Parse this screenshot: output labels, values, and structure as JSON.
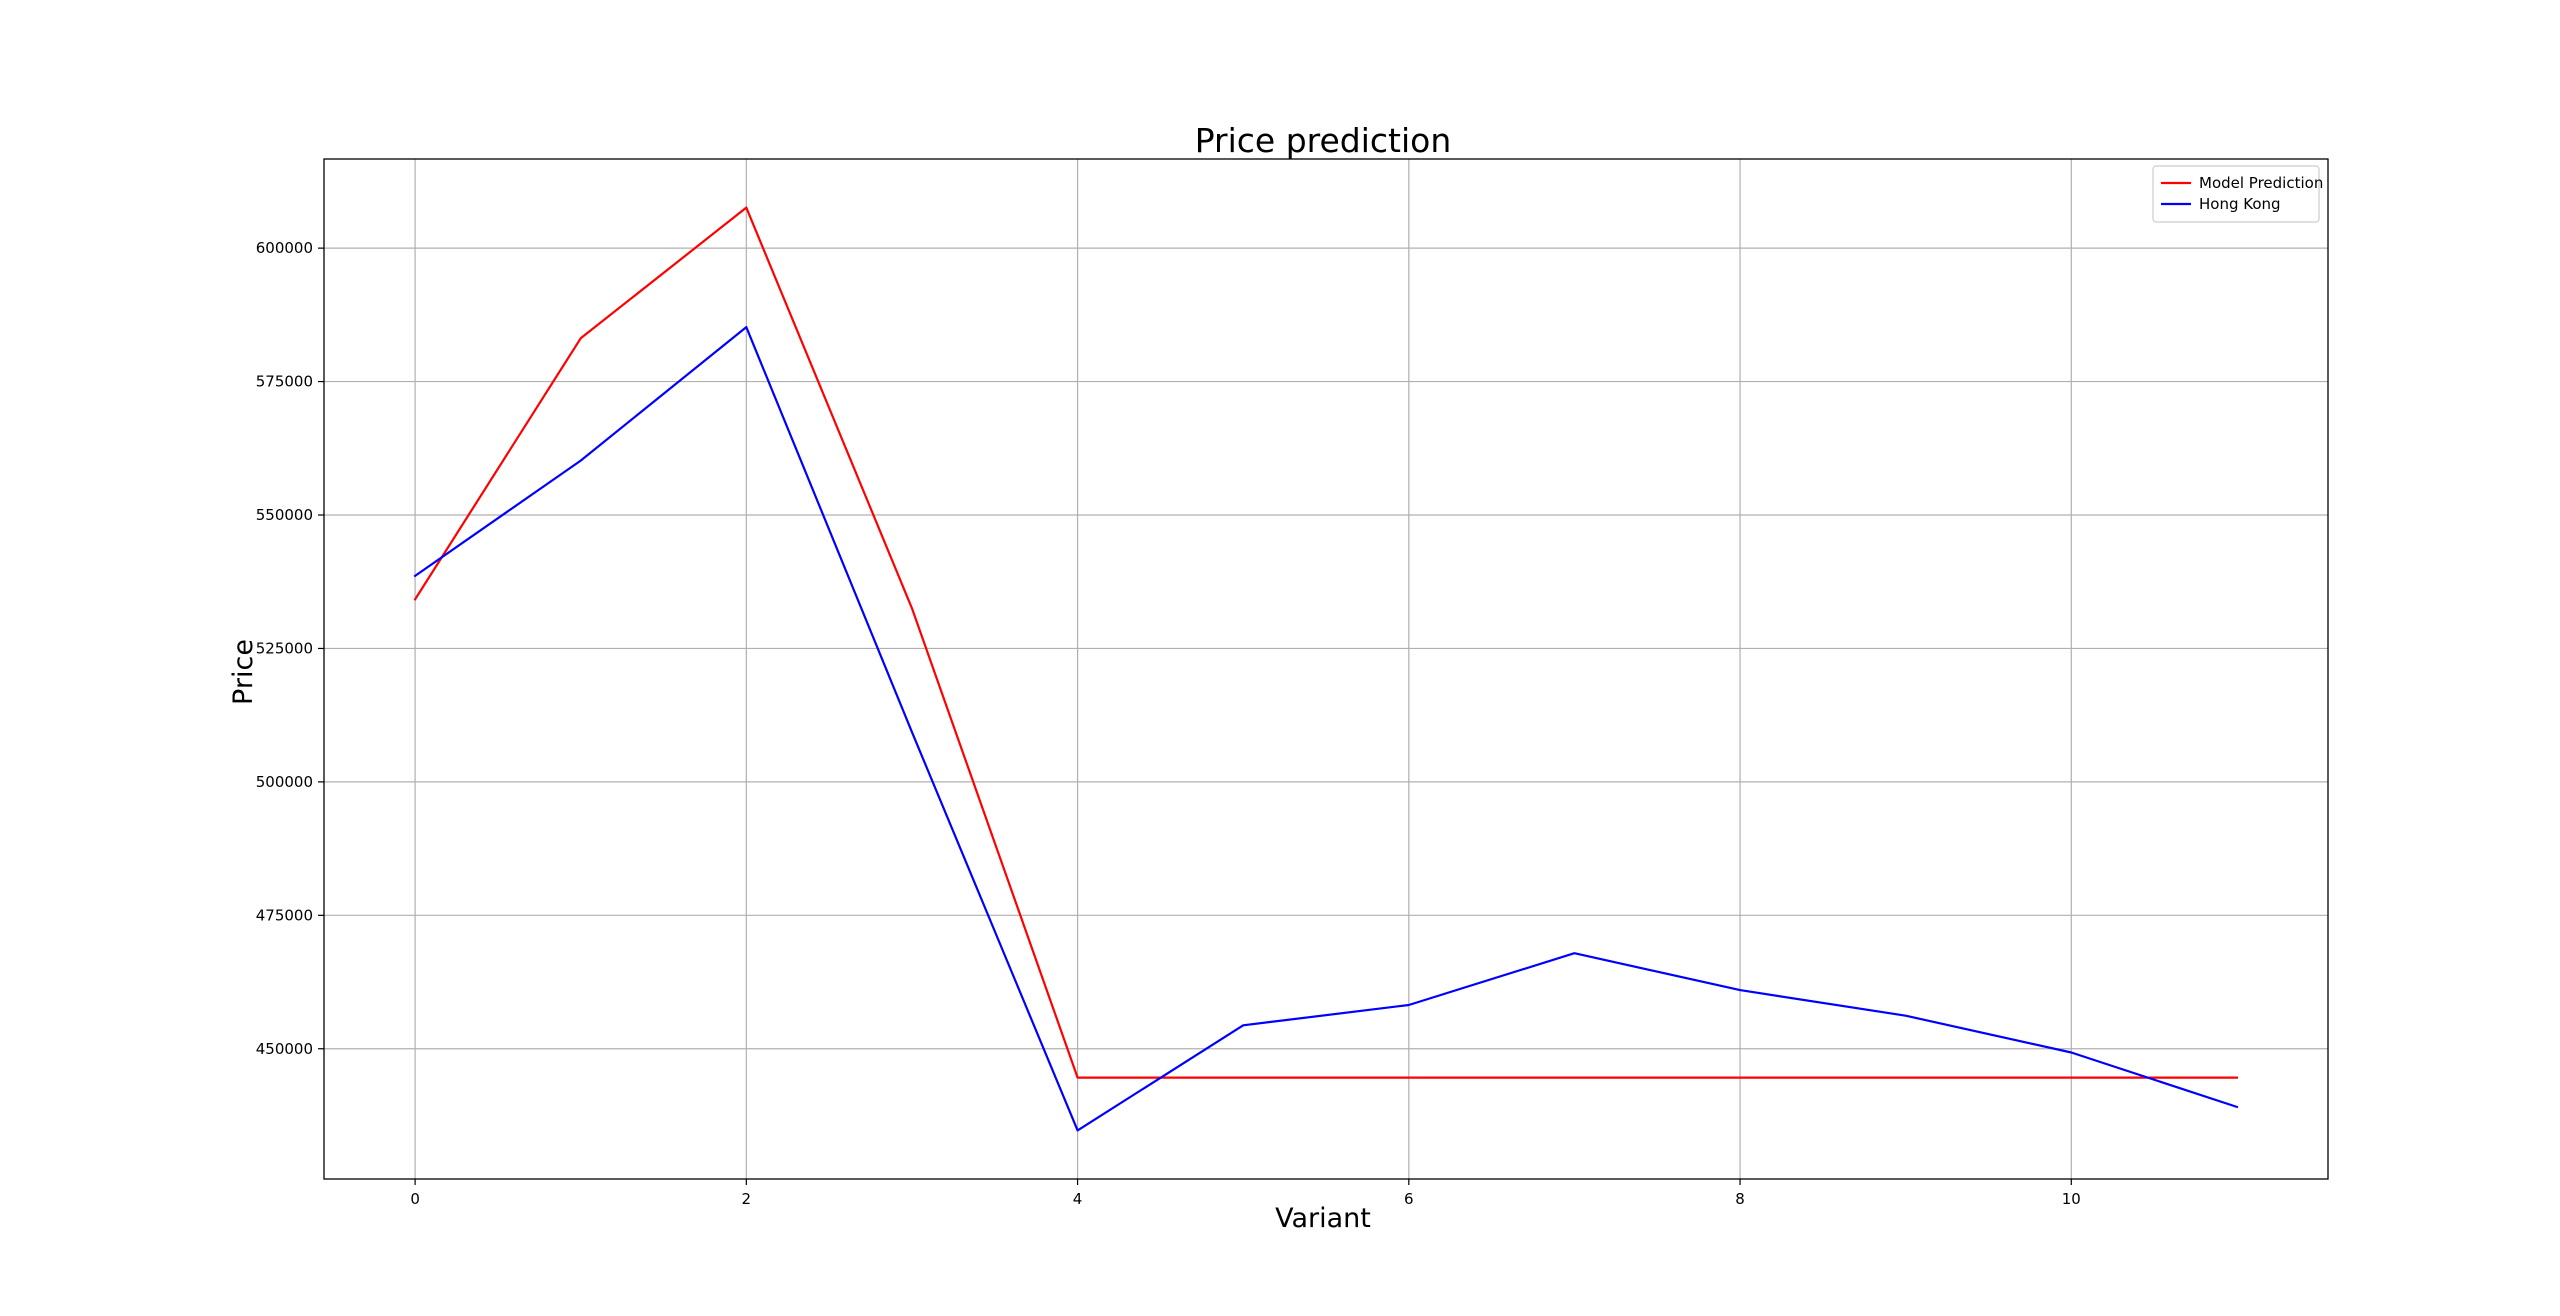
{
  "chart_data": {
    "type": "line",
    "title": "Price prediction",
    "xlabel": "Variant",
    "ylabel": "Price",
    "x": [
      0,
      1,
      2,
      3,
      4,
      5,
      6,
      7,
      8,
      9,
      10,
      11
    ],
    "xlim": [
      -0.55,
      11.55
    ],
    "ylim": [
      425600,
      616700
    ],
    "xticks": [
      0,
      2,
      4,
      6,
      8,
      10
    ],
    "yticks": [
      450000,
      475000,
      500000,
      525000,
      550000,
      575000,
      600000
    ],
    "xtick_labels": [
      "0",
      "2",
      "4",
      "6",
      "8",
      "10"
    ],
    "ytick_labels": [
      "450000",
      "475000",
      "500000",
      "525000",
      "550000",
      "575000",
      "600000"
    ],
    "grid": true,
    "legend_position": "top-right",
    "series": [
      {
        "name": "Model Prediction",
        "color": "#ff0000",
        "values": [
          534200,
          583100,
          607600,
          532500,
          444600,
          444600,
          444600,
          444600,
          444600,
          444600,
          444600,
          444600
        ]
      },
      {
        "name": "Hong Kong",
        "color": "#0000ff",
        "values": [
          538600,
          560200,
          585200,
          509300,
          434700,
          454400,
          458200,
          467900,
          461000,
          456200,
          449300,
          439100
        ]
      }
    ]
  }
}
